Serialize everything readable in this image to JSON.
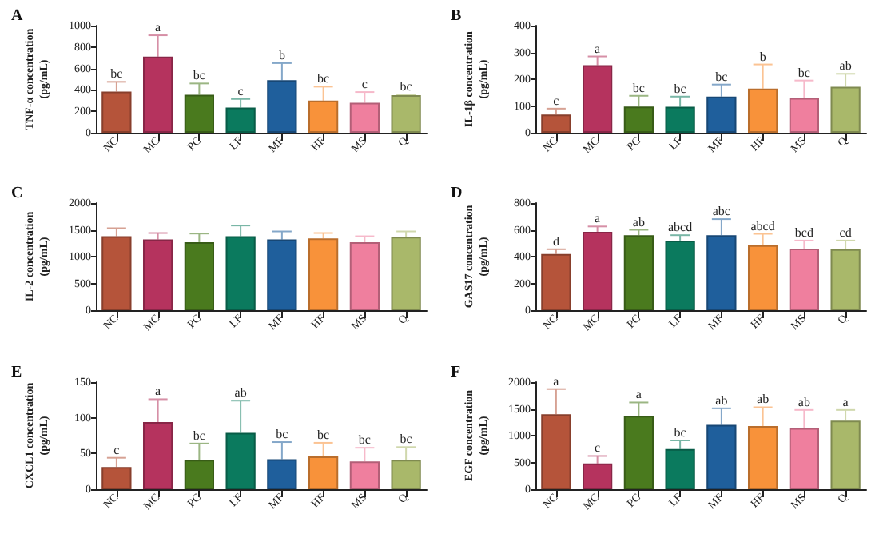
{
  "chart_data": [
    {
      "type": "bar",
      "title": "A",
      "ylabel": "TNF-α concentration\n(pg/mL)",
      "categories": [
        "NC",
        "MC",
        "PC",
        "LF",
        "MF",
        "HF",
        "MS",
        "Q"
      ],
      "values": [
        385,
        710,
        355,
        235,
        490,
        300,
        280,
        350
      ],
      "errors": [
        90,
        200,
        105,
        80,
        160,
        130,
        100,
        5
      ],
      "colors": [
        "#b5543a",
        "#b5335e",
        "#4a7a1e",
        "#0b7a5e",
        "#1f5f9c",
        "#f8923a",
        "#ef7f9e",
        "#a9b86a"
      ],
      "ylim": [
        0,
        1000
      ],
      "yticks": [
        0,
        200,
        400,
        600,
        800,
        1000
      ],
      "annotations": [
        {
          "text": "bc",
          "x": "NC",
          "y": 475
        },
        {
          "text": "a",
          "x": "MC",
          "y": 910
        },
        {
          "text": "bc",
          "x": "PC",
          "y": 460
        },
        {
          "text": "c",
          "x": "LF",
          "y": 315
        },
        {
          "text": "b",
          "x": "MF",
          "y": 650
        },
        {
          "text": "bc",
          "x": "HF",
          "y": 430
        },
        {
          "text": "c",
          "x": "MS",
          "y": 380
        },
        {
          "text": "bc",
          "x": "Q",
          "y": 355
        }
      ]
    },
    {
      "type": "bar",
      "title": "B",
      "ylabel": "IL-1β concentration\n(pg/mL)",
      "categories": [
        "NC",
        "MC",
        "PC",
        "LF",
        "MF",
        "HF",
        "MS",
        "Q"
      ],
      "values": [
        68,
        252,
        98,
        97,
        135,
        165,
        130,
        172
      ],
      "errors": [
        22,
        33,
        40,
        38,
        45,
        90,
        65,
        48
      ],
      "colors": [
        "#b5543a",
        "#b5335e",
        "#4a7a1e",
        "#0b7a5e",
        "#1f5f9c",
        "#f8923a",
        "#ef7f9e",
        "#a9b86a"
      ],
      "ylim": [
        0,
        400
      ],
      "yticks": [
        0,
        100,
        200,
        300,
        400
      ],
      "annotations": [
        {
          "text": "c",
          "x": "NC",
          "y": 90
        },
        {
          "text": "a",
          "x": "MC",
          "y": 285
        },
        {
          "text": "bc",
          "x": "PC",
          "y": 138
        },
        {
          "text": "bc",
          "x": "LF",
          "y": 135
        },
        {
          "text": "bc",
          "x": "MF",
          "y": 180
        },
        {
          "text": "b",
          "x": "HF",
          "y": 255
        },
        {
          "text": "bc",
          "x": "MS",
          "y": 195
        },
        {
          "text": "ab",
          "x": "Q",
          "y": 220
        }
      ]
    },
    {
      "type": "bar",
      "title": "C",
      "ylabel": "IL-2 concentration\n(pg/mL)",
      "categories": [
        "NC",
        "MC",
        "PC",
        "LF",
        "MF",
        "HF",
        "MS",
        "Q"
      ],
      "values": [
        1380,
        1320,
        1270,
        1380,
        1320,
        1340,
        1270,
        1370
      ],
      "errors": [
        150,
        120,
        160,
        200,
        150,
        100,
        110,
        100
      ],
      "colors": [
        "#b5543a",
        "#b5335e",
        "#4a7a1e",
        "#0b7a5e",
        "#1f5f9c",
        "#f8923a",
        "#ef7f9e",
        "#a9b86a"
      ],
      "ylim": [
        0,
        2000
      ],
      "yticks": [
        0,
        500,
        1000,
        1500,
        2000
      ]
    },
    {
      "type": "bar",
      "title": "D",
      "ylabel": "GAS17 concentration\n(pg/mL)",
      "categories": [
        "NC",
        "MC",
        "PC",
        "LF",
        "MF",
        "HF",
        "MS",
        "Q"
      ],
      "values": [
        420,
        585,
        560,
        520,
        560,
        485,
        460,
        455
      ],
      "errors": [
        35,
        40,
        40,
        40,
        120,
        85,
        60,
        65
      ],
      "colors": [
        "#b5543a",
        "#b5335e",
        "#4a7a1e",
        "#0b7a5e",
        "#1f5f9c",
        "#f8923a",
        "#ef7f9e",
        "#a9b86a"
      ],
      "ylim": [
        0,
        800
      ],
      "yticks": [
        0,
        200,
        400,
        600,
        800
      ],
      "annotations": [
        {
          "text": "d",
          "x": "NC",
          "y": 455
        },
        {
          "text": "a",
          "x": "MC",
          "y": 625
        },
        {
          "text": "ab",
          "x": "PC",
          "y": 600
        },
        {
          "text": "abcd",
          "x": "LF",
          "y": 560
        },
        {
          "text": "abc",
          "x": "MF",
          "y": 680
        },
        {
          "text": "abcd",
          "x": "HF",
          "y": 570
        },
        {
          "text": "bcd",
          "x": "MS",
          "y": 520
        },
        {
          "text": "cd",
          "x": "Q",
          "y": 520
        }
      ]
    },
    {
      "type": "bar",
      "title": "E",
      "ylabel": "CXCL1 concentration\n(pg/mL)",
      "categories": [
        "NC",
        "MC",
        "PC",
        "LF",
        "MF",
        "HF",
        "MS",
        "Q"
      ],
      "values": [
        31,
        94,
        41,
        79,
        42,
        46,
        39,
        41
      ],
      "errors": [
        13,
        32,
        23,
        45,
        24,
        19,
        19,
        18
      ],
      "colors": [
        "#b5543a",
        "#b5335e",
        "#4a7a1e",
        "#0b7a5e",
        "#1f5f9c",
        "#f8923a",
        "#ef7f9e",
        "#a9b86a"
      ],
      "ylim": [
        0,
        150
      ],
      "yticks": [
        0,
        50,
        100,
        150
      ],
      "annotations": [
        {
          "text": "c",
          "x": "NC",
          "y": 44
        },
        {
          "text": "a",
          "x": "MC",
          "y": 126
        },
        {
          "text": "bc",
          "x": "PC",
          "y": 64
        },
        {
          "text": "ab",
          "x": "LF",
          "y": 124
        },
        {
          "text": "bc",
          "x": "MF",
          "y": 66
        },
        {
          "text": "bc",
          "x": "HF",
          "y": 65
        },
        {
          "text": "bc",
          "x": "MS",
          "y": 58
        },
        {
          "text": "bc",
          "x": "Q",
          "y": 59
        }
      ]
    },
    {
      "type": "bar",
      "title": "F",
      "ylabel": "EGF concentration\n(pg/mL)",
      "categories": [
        "NC",
        "MC",
        "PC",
        "LF",
        "MF",
        "HF",
        "MS",
        "Q"
      ],
      "values": [
        1400,
        480,
        1370,
        750,
        1200,
        1180,
        1140,
        1280
      ],
      "errors": [
        470,
        140,
        250,
        160,
        310,
        350,
        340,
        200
      ],
      "colors": [
        "#b5543a",
        "#b5335e",
        "#4a7a1e",
        "#0b7a5e",
        "#1f5f9c",
        "#f8923a",
        "#ef7f9e",
        "#a9b86a"
      ],
      "ylim": [
        0,
        2000
      ],
      "yticks": [
        0,
        500,
        1000,
        1500,
        2000
      ],
      "annotations": [
        {
          "text": "a",
          "x": "NC",
          "y": 1870
        },
        {
          "text": "c",
          "x": "MC",
          "y": 620
        },
        {
          "text": "a",
          "x": "PC",
          "y": 1620
        },
        {
          "text": "bc",
          "x": "LF",
          "y": 910
        },
        {
          "text": "ab",
          "x": "MF",
          "y": 1510
        },
        {
          "text": "ab",
          "x": "HF",
          "y": 1530
        },
        {
          "text": "ab",
          "x": "MS",
          "y": 1480
        },
        {
          "text": "a",
          "x": "Q",
          "y": 1480
        }
      ]
    }
  ]
}
